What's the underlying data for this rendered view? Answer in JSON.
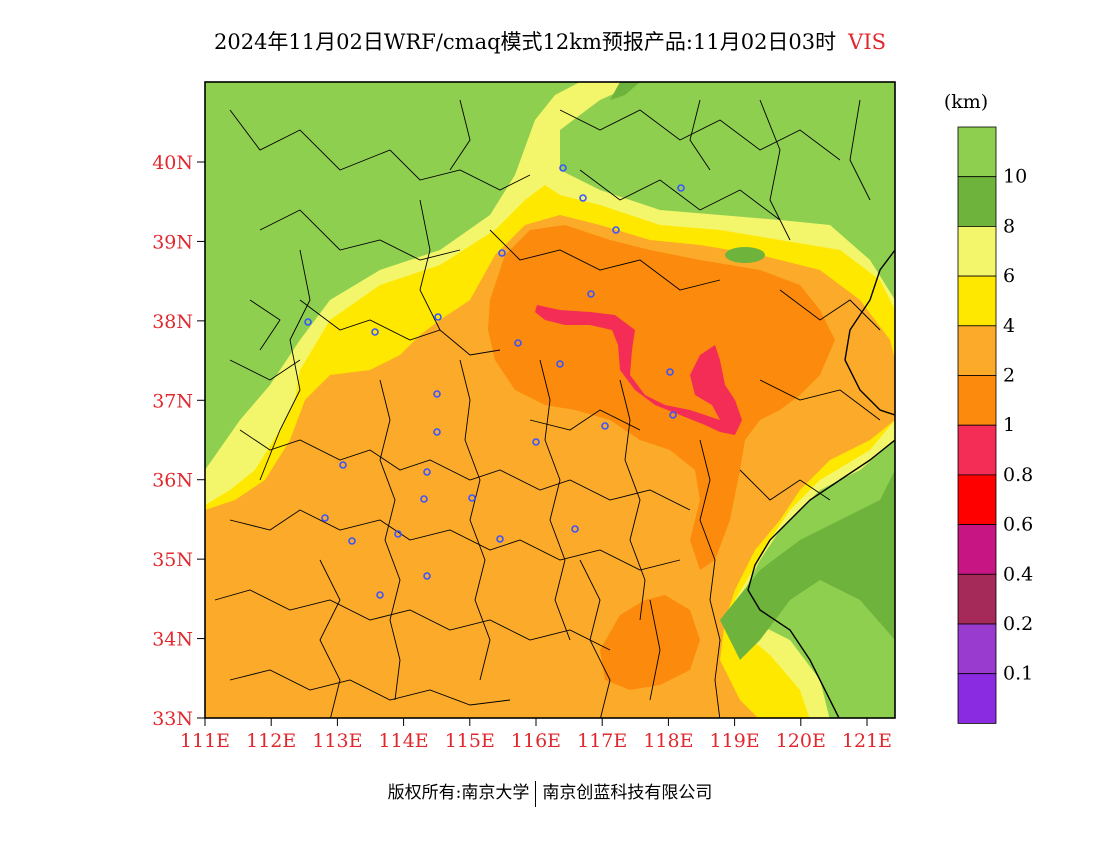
{
  "title": {
    "text": "2024年11月02日WRF/cmaq模式12km预报产品:11月02日03时",
    "variable": "VIS"
  },
  "legend": {
    "unit": "(km)",
    "labels": [
      "10",
      "8",
      "6",
      "4",
      "2",
      "1",
      "0.8",
      "0.6",
      "0.4",
      "0.2",
      "0.1"
    ],
    "colors": [
      "#8fcf50",
      "#6db33c",
      "#f3f66a",
      "#ffe800",
      "#fcaa2a",
      "#fc8a0c",
      "#f42d56",
      "#ff0000",
      "#c71683",
      "#a52a5a",
      "#9a3bd0",
      "#8a2be2"
    ]
  },
  "map": {
    "lat_labels": [
      "40N",
      "39N",
      "38N",
      "37N",
      "36N",
      "35N",
      "34N",
      "33N"
    ],
    "lon_labels": [
      "111E",
      "112E",
      "113E",
      "114E",
      "115E",
      "116E",
      "117E",
      "118E",
      "119E",
      "120E",
      "121E"
    ],
    "colors": {
      "gt10": "#8fcf50",
      "v8_10": "#6db33c",
      "v6_8": "#f3f66a",
      "v4_6": "#ffe800",
      "v2_4": "#fcaa2a",
      "v1_2": "#fc8a0c",
      "v08_1": "#f42d56",
      "border": "#000000",
      "city": "#3a55ff"
    }
  },
  "footer": {
    "copyright": "版权所有:南京大学",
    "company": "南京创蓝科技有限公司"
  }
}
